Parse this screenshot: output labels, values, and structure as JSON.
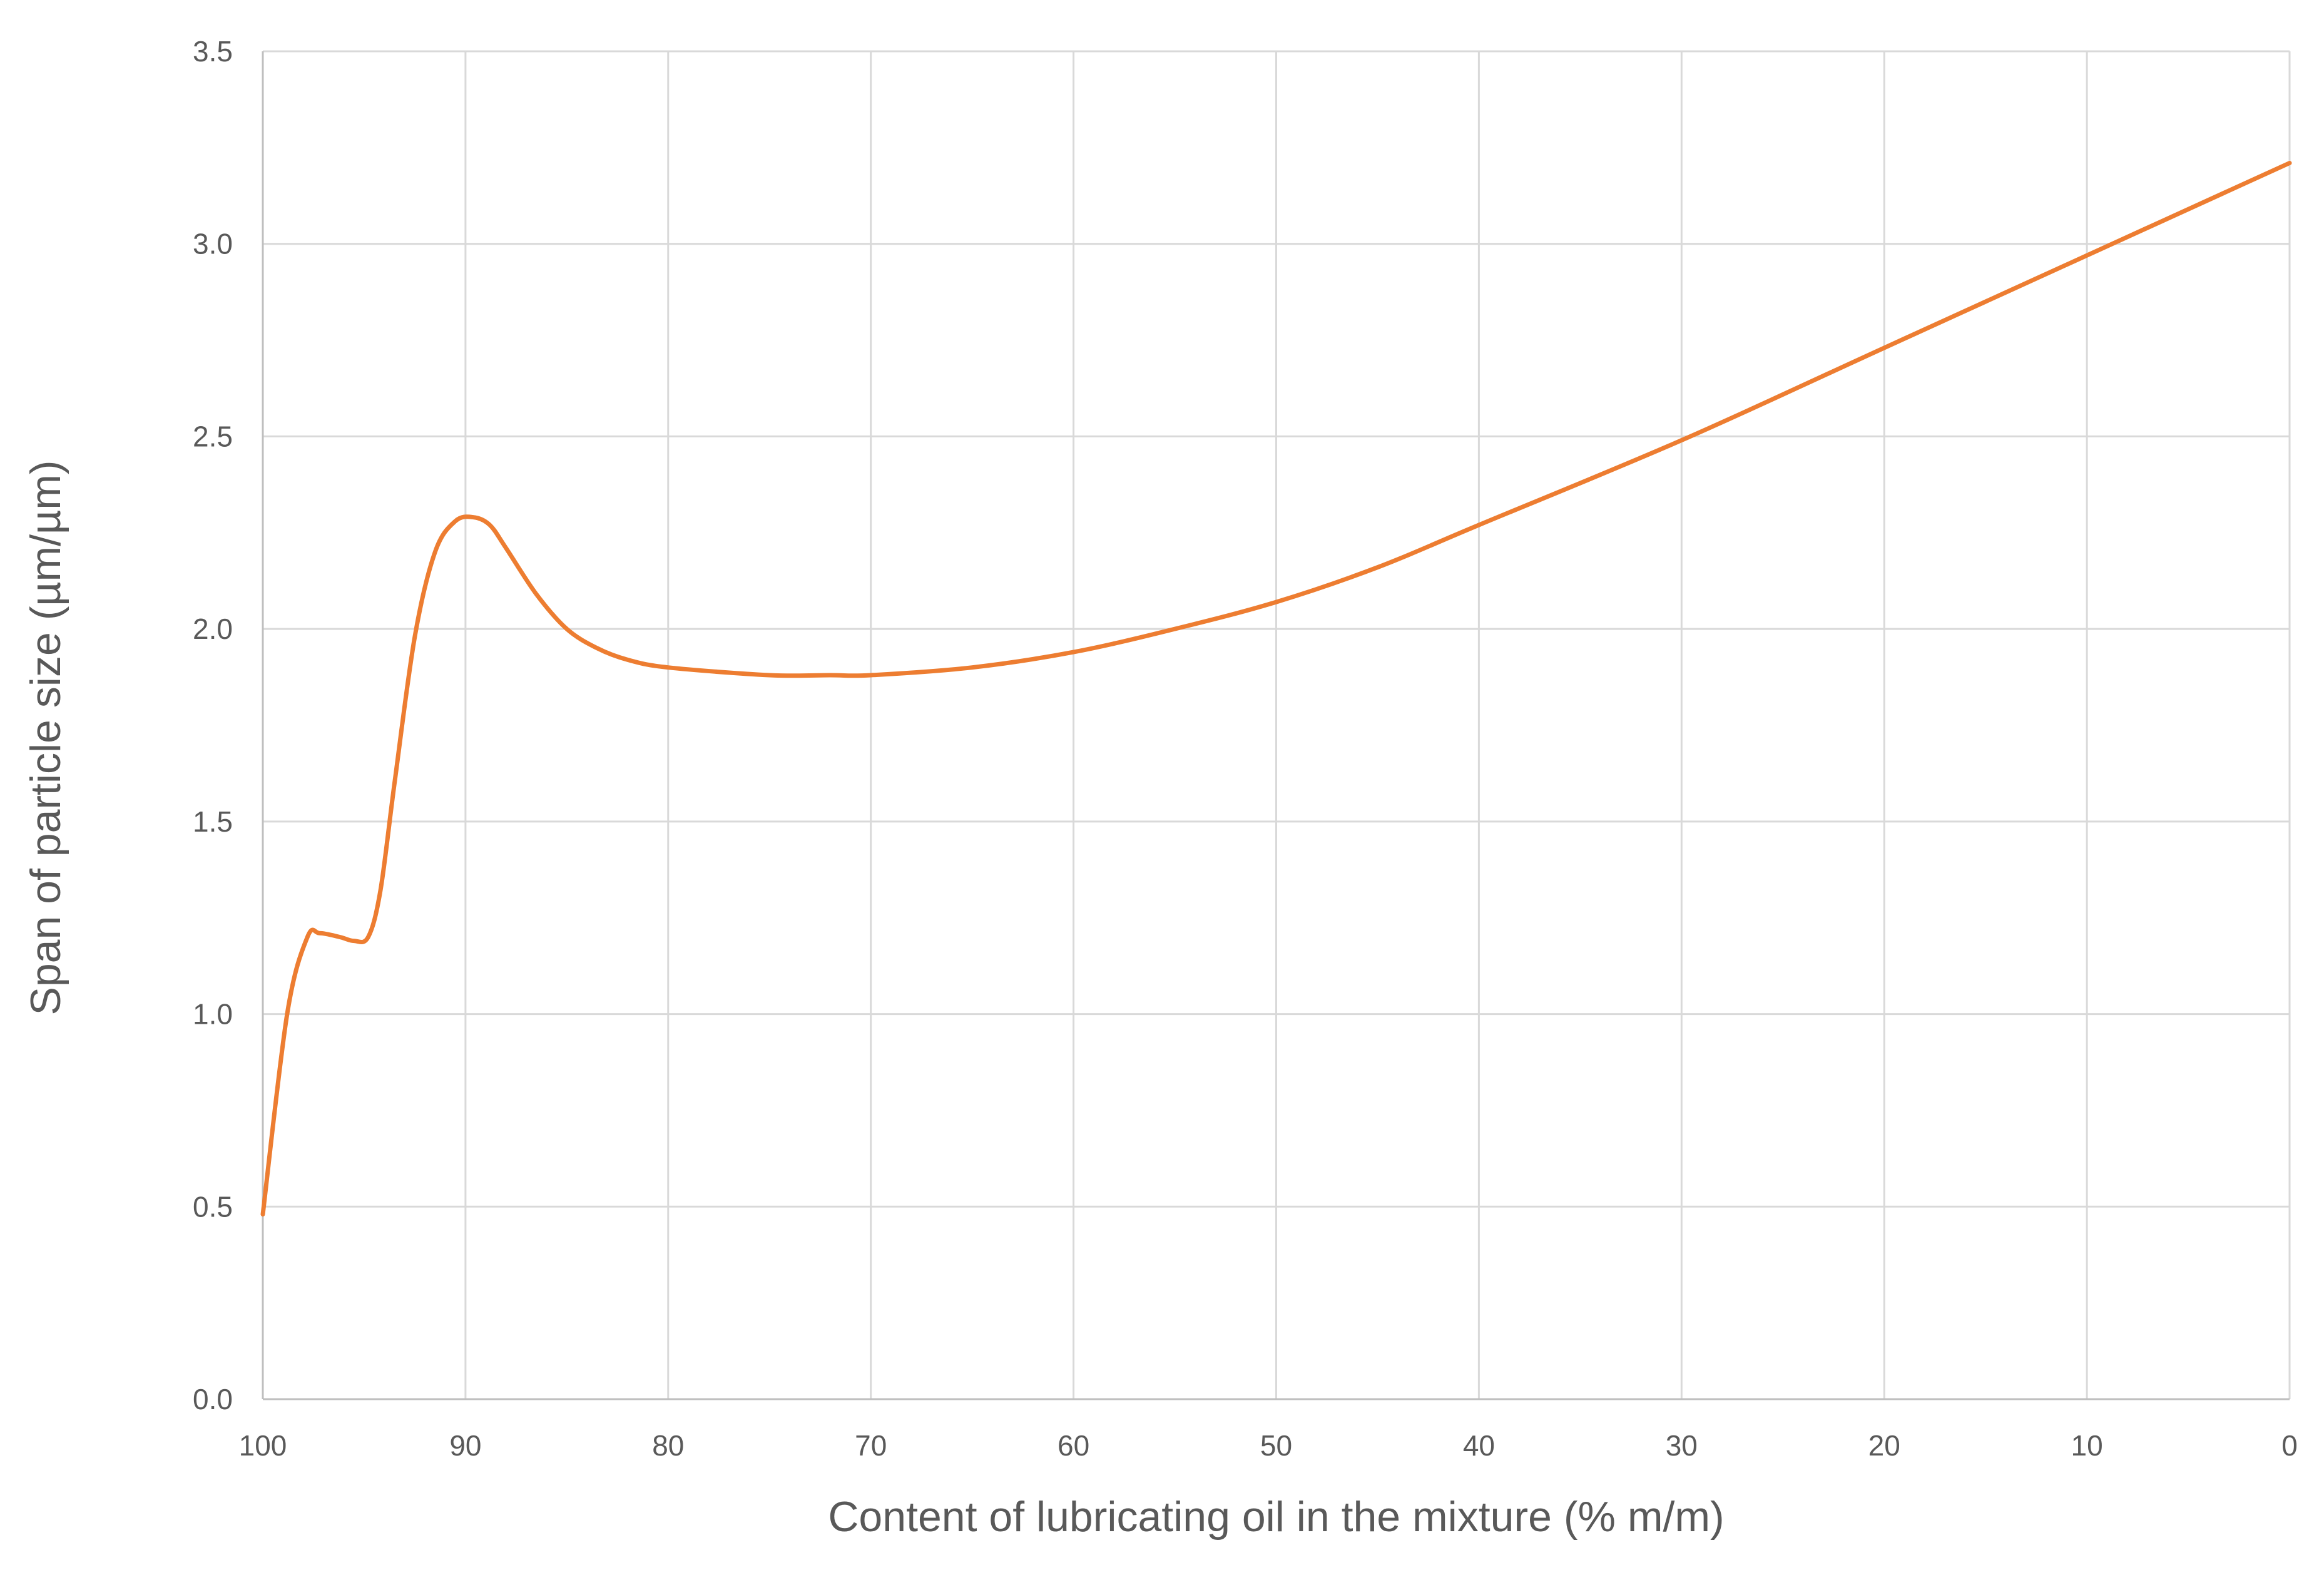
{
  "chart_data": {
    "type": "line",
    "title": "",
    "xlabel": "Content of lubricating oil in the mixture (% m/m)",
    "ylabel": "Span of particle size (µm/µm)",
    "xlim": [
      100,
      0
    ],
    "ylim": [
      0,
      3.5
    ],
    "x_ticks": [
      "100",
      "90",
      "80",
      "70",
      "60",
      "50",
      "40",
      "30",
      "20",
      "10",
      "0"
    ],
    "y_ticks": [
      "0.0",
      "0.5",
      "1.0",
      "1.5",
      "2.0",
      "2.5",
      "3.0",
      "3.5"
    ],
    "grid": true,
    "legend": "none",
    "series": [
      {
        "color": "#ED7D31",
        "x": [
          100,
          98.8,
          97.8,
          97.2,
          96.2,
          95.5,
          94.8,
          94.2,
          93.5,
          92.5,
          91.5,
          90.5,
          89.6,
          88.8,
          88.0,
          86.5,
          85.0,
          83.5,
          82.0,
          80.0,
          75.0,
          72.0,
          70.0,
          65.0,
          60.0,
          55.0,
          50.0,
          45.0,
          40.0,
          30.0,
          20.0,
          10.0,
          0.0
        ],
        "y": [
          0.48,
          1.0,
          1.2,
          1.21,
          1.2,
          1.19,
          1.2,
          1.32,
          1.6,
          1.98,
          2.2,
          2.28,
          2.29,
          2.27,
          2.21,
          2.09,
          2.0,
          1.95,
          1.92,
          1.9,
          1.88,
          1.88,
          1.88,
          1.9,
          1.94,
          2.0,
          2.07,
          2.16,
          2.27,
          2.49,
          2.73,
          2.97,
          3.21
        ]
      }
    ]
  }
}
